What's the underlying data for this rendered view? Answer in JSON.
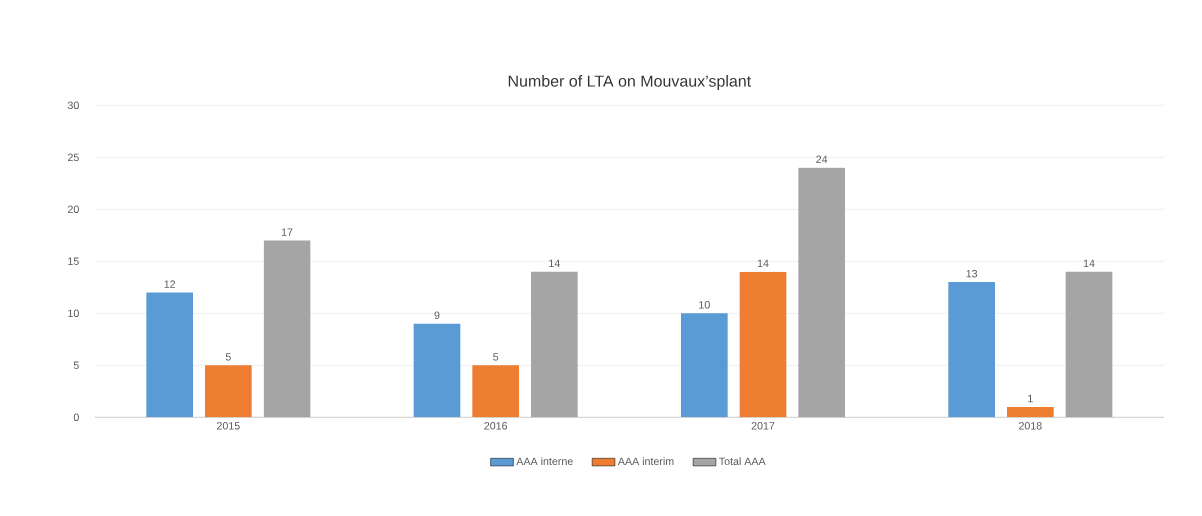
{
  "chart_data": {
    "type": "bar",
    "title": "Number of LTA on Mouvaux’splant",
    "categories": [
      "2015",
      "2016",
      "2017",
      "2018"
    ],
    "series": [
      {
        "name": "AAA interne",
        "color": "#5b9bd5",
        "values": [
          12,
          9,
          10,
          13
        ]
      },
      {
        "name": "AAA interim",
        "color": "#ed7d31",
        "values": [
          5,
          5,
          14,
          1
        ]
      },
      {
        "name": "Total AAA",
        "color": "#a5a5a5",
        "values": [
          17,
          14,
          24,
          14
        ]
      }
    ],
    "ylim": [
      0,
      30
    ],
    "yticks": [
      0,
      5,
      10,
      15,
      20,
      25,
      30
    ],
    "grid": "y",
    "legend": "bottom",
    "data_labels": true
  }
}
